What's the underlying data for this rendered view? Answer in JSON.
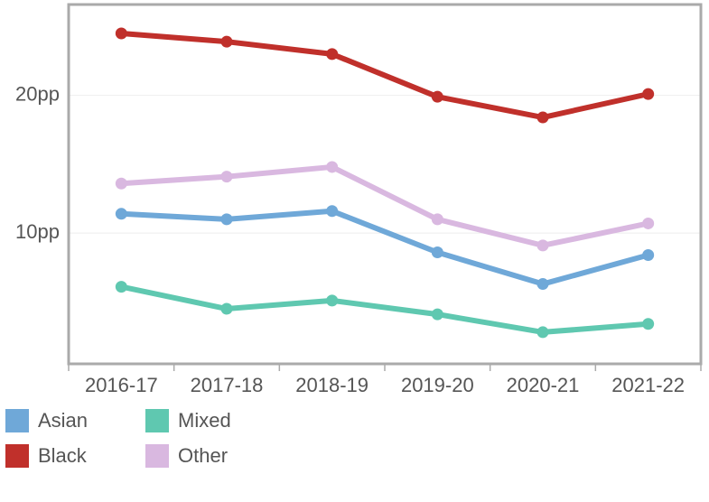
{
  "chart_data": {
    "type": "line",
    "categories": [
      "2016-17",
      "2017-18",
      "2018-19",
      "2019-20",
      "2020-21",
      "2021-22"
    ],
    "series": [
      {
        "name": "Asian",
        "color": "#6fa8d8",
        "values": [
          11.4,
          11.0,
          11.6,
          8.6,
          6.3,
          8.4
        ]
      },
      {
        "name": "Black",
        "color": "#c0302b",
        "values": [
          24.5,
          23.9,
          23.0,
          19.9,
          18.4,
          20.1
        ]
      },
      {
        "name": "Mixed",
        "color": "#5fc8b0",
        "values": [
          6.1,
          4.5,
          5.1,
          4.1,
          2.8,
          3.4
        ]
      },
      {
        "name": "Other",
        "color": "#d9b8e0",
        "values": [
          13.6,
          14.1,
          14.8,
          11.0,
          9.1,
          10.7
        ]
      }
    ],
    "ylim": [
      0.5,
      26.6
    ],
    "yticks": [
      {
        "value": 10,
        "label": "10pp"
      },
      {
        "value": 20,
        "label": "20pp"
      }
    ],
    "grid": true
  }
}
